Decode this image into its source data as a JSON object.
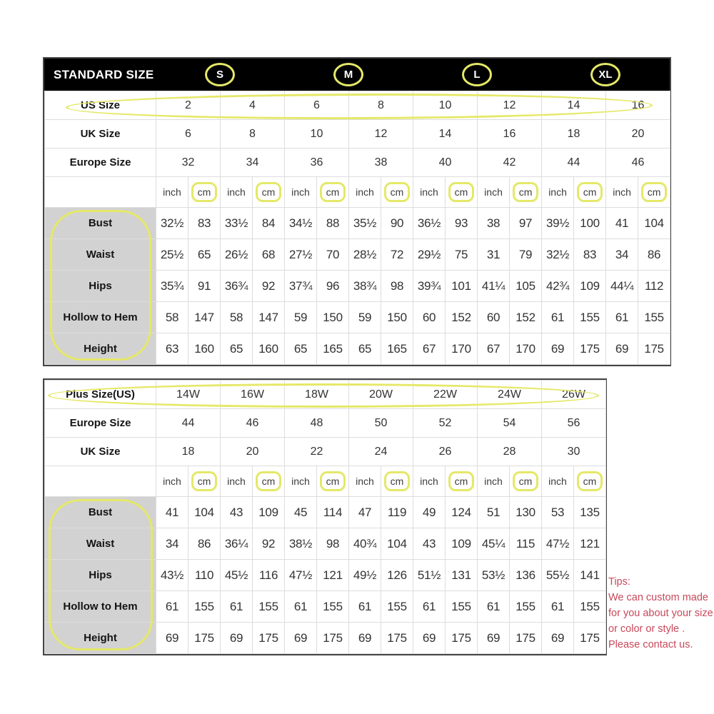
{
  "colors": {
    "highlight": "#e5e868",
    "header_bg": "#000000",
    "label_bg": "#d2d2d2",
    "tips_text": "#c9485b"
  },
  "tips": {
    "title": "Tips:",
    "lines": [
      "We can custom made",
      "for you about your size",
      "or color or style .",
      "Please contact us."
    ]
  },
  "chart_data": [
    {
      "type": "table",
      "title": "STANDARD SIZE",
      "size_groups": [
        "S",
        "M",
        "L",
        "XL"
      ],
      "rows_top": [
        {
          "label": "US Size",
          "values": [
            "2",
            "4",
            "6",
            "8",
            "10",
            "12",
            "14",
            "16"
          ],
          "highlighted": true
        },
        {
          "label": "UK Size",
          "values": [
            "6",
            "8",
            "10",
            "12",
            "14",
            "16",
            "18",
            "20"
          ],
          "highlighted": false
        },
        {
          "label": "Europe Size",
          "values": [
            "32",
            "34",
            "36",
            "38",
            "40",
            "42",
            "44",
            "46"
          ],
          "highlighted": false
        }
      ],
      "unit_row": {
        "inch": "inch",
        "cm": "cm",
        "cm_highlighted": true
      },
      "measure_rows": [
        {
          "label": "Bust",
          "values": [
            "32½",
            "83",
            "33½",
            "84",
            "34½",
            "88",
            "35½",
            "90",
            "36½",
            "93",
            "38",
            "97",
            "39½",
            "100",
            "41",
            "104"
          ]
        },
        {
          "label": "Waist",
          "values": [
            "25½",
            "65",
            "26½",
            "68",
            "27½",
            "70",
            "28½",
            "72",
            "29½",
            "75",
            "31",
            "79",
            "32½",
            "83",
            "34",
            "86"
          ]
        },
        {
          "label": "Hips",
          "values": [
            "35¾",
            "91",
            "36¾",
            "92",
            "37¾",
            "96",
            "38¾",
            "98",
            "39¾",
            "101",
            "41¼",
            "105",
            "42¾",
            "109",
            "44¼",
            "112"
          ]
        },
        {
          "label": "Hollow to Hem",
          "values": [
            "58",
            "147",
            "58",
            "147",
            "59",
            "150",
            "59",
            "150",
            "60",
            "152",
            "60",
            "152",
            "61",
            "155",
            "61",
            "155"
          ]
        },
        {
          "label": "Height",
          "values": [
            "63",
            "160",
            "65",
            "160",
            "65",
            "165",
            "65",
            "165",
            "67",
            "170",
            "67",
            "170",
            "69",
            "175",
            "69",
            "175"
          ]
        }
      ],
      "label_column_highlighted": true
    },
    {
      "type": "table",
      "title": "Plus Size(US)",
      "rows_top": [
        {
          "label": "Plus Size(US)",
          "values": [
            "14W",
            "16W",
            "18W",
            "20W",
            "22W",
            "24W",
            "26W"
          ],
          "highlighted": true
        },
        {
          "label": "Europe Size",
          "values": [
            "44",
            "46",
            "48",
            "50",
            "52",
            "54",
            "56"
          ],
          "highlighted": false
        },
        {
          "label": "UK Size",
          "values": [
            "18",
            "20",
            "22",
            "24",
            "26",
            "28",
            "30"
          ],
          "highlighted": false
        }
      ],
      "unit_row": {
        "inch": "inch",
        "cm": "cm",
        "cm_highlighted": true
      },
      "measure_rows": [
        {
          "label": "Bust",
          "values": [
            "41",
            "104",
            "43",
            "109",
            "45",
            "114",
            "47",
            "119",
            "49",
            "124",
            "51",
            "130",
            "53",
            "135"
          ]
        },
        {
          "label": "Waist",
          "values": [
            "34",
            "86",
            "36¼",
            "92",
            "38½",
            "98",
            "40¾",
            "104",
            "43",
            "109",
            "45¼",
            "115",
            "47½",
            "121"
          ]
        },
        {
          "label": "Hips",
          "values": [
            "43½",
            "110",
            "45½",
            "116",
            "47½",
            "121",
            "49½",
            "126",
            "51½",
            "131",
            "53½",
            "136",
            "55½",
            "141"
          ]
        },
        {
          "label": "Hollow to Hem",
          "values": [
            "61",
            "155",
            "61",
            "155",
            "61",
            "155",
            "61",
            "155",
            "61",
            "155",
            "61",
            "155",
            "61",
            "155"
          ]
        },
        {
          "label": "Height",
          "values": [
            "69",
            "175",
            "69",
            "175",
            "69",
            "175",
            "69",
            "175",
            "69",
            "175",
            "69",
            "175",
            "69",
            "175"
          ]
        }
      ],
      "label_column_highlighted": true
    }
  ]
}
